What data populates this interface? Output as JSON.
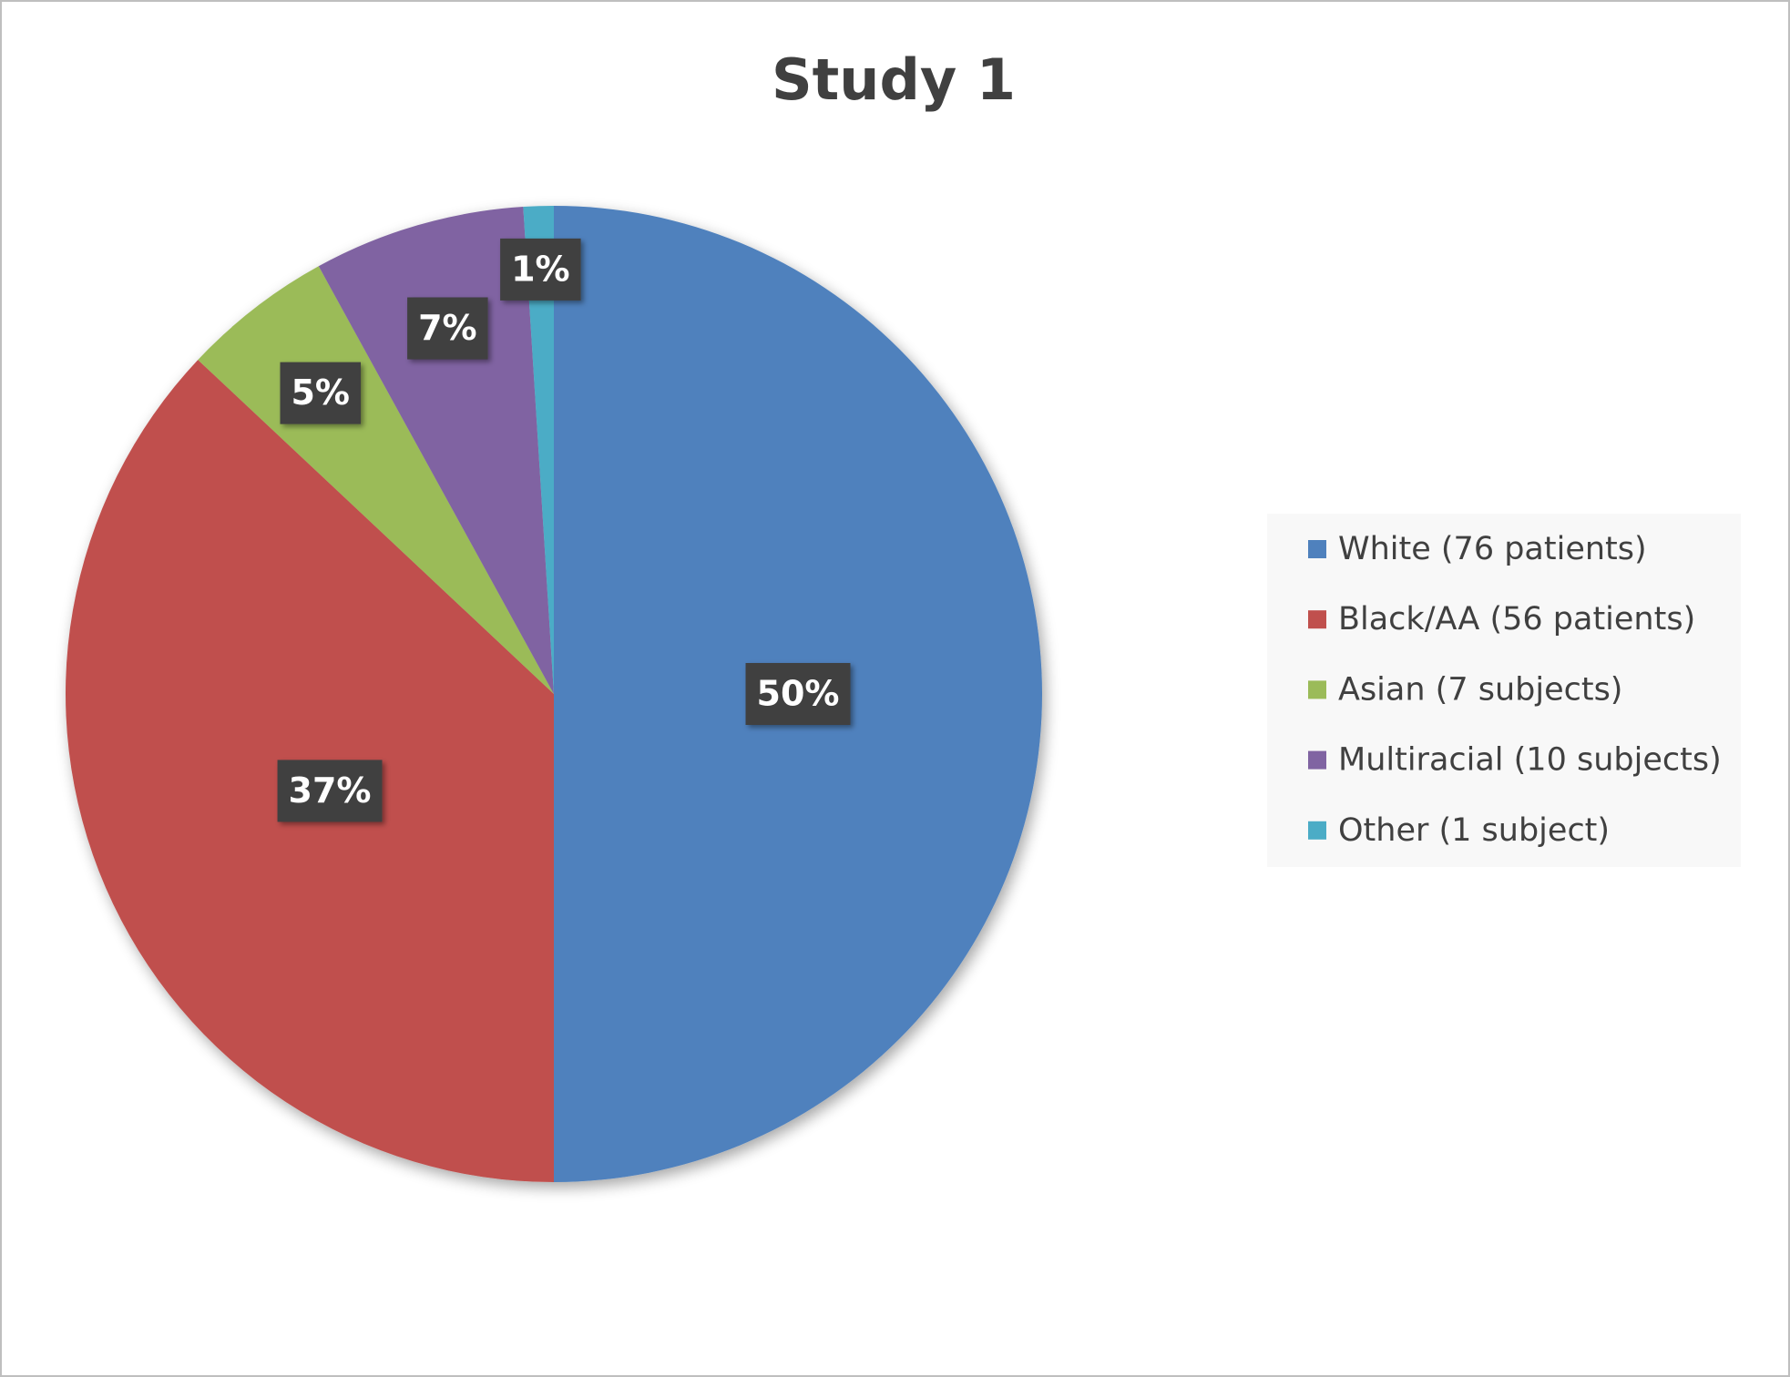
{
  "chart_data": {
    "type": "pie",
    "title": "Study 1",
    "categories": [
      "White (76 patients)",
      "Black/AA (56 patients)",
      "Asian (7 subjects)",
      "Multiracial (10 subjects)",
      "Other (1 subject)"
    ],
    "values": [
      50,
      37,
      5,
      7,
      1
    ],
    "value_labels": [
      "50%",
      "37%",
      "5%",
      "7%",
      "1%"
    ],
    "colors": [
      "#4f81bd",
      "#c0504d",
      "#9bbb59",
      "#8064a2",
      "#4bacc6"
    ],
    "legend": "right"
  }
}
